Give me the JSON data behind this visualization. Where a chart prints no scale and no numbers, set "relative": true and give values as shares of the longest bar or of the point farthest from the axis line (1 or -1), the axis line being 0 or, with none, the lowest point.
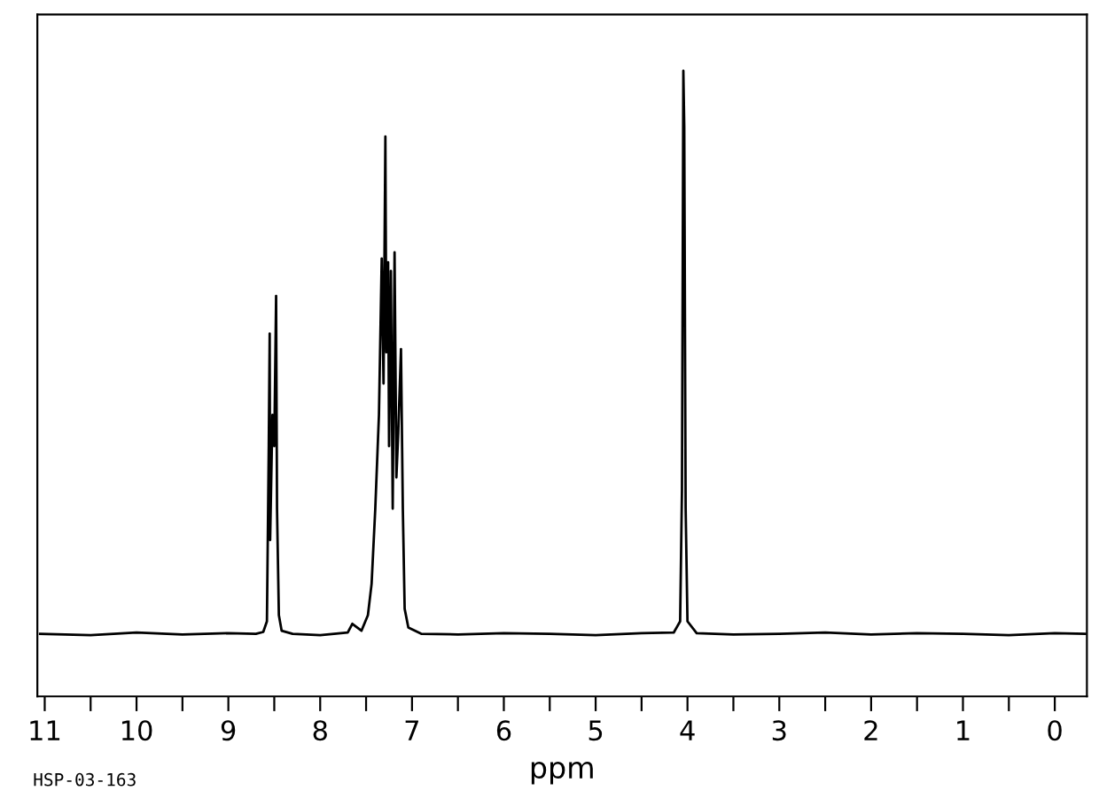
{
  "chart_data": {
    "type": "line",
    "relative": true,
    "xlabel": "ppm",
    "annotations": [
      "HSP-03-163"
    ],
    "xlim": [
      11.08,
      -0.35
    ],
    "xticks": [
      11,
      {
        "value": 10.5,
        "label": null
      },
      10,
      {
        "value": 9.5,
        "label": null
      },
      9,
      {
        "value": 8.5,
        "label": null
      },
      8,
      {
        "value": 7.5,
        "label": null
      },
      7,
      {
        "value": 6.5,
        "label": null
      },
      6,
      {
        "value": 5.5,
        "label": null
      },
      5,
      {
        "value": 4.5,
        "label": null
      },
      4,
      {
        "value": 3.5,
        "label": null
      },
      3,
      {
        "value": 2.5,
        "label": null
      },
      2,
      {
        "value": 1.5,
        "label": null
      },
      1,
      {
        "value": 0.5,
        "label": null
      },
      0
    ],
    "tick_labels": "x",
    "marker": "none",
    "line_style": "solid",
    "series": [
      {
        "color": "#000000",
        "x": [
          11.05,
          10.5,
          10.0,
          9.5,
          9.0,
          8.7,
          8.62,
          8.58,
          8.56,
          8.55,
          8.545,
          8.52,
          8.5,
          8.48,
          8.47,
          8.45,
          8.42,
          8.3,
          8.0,
          7.7,
          7.65,
          7.55,
          7.48,
          7.44,
          7.4,
          7.36,
          7.33,
          7.31,
          7.29,
          7.28,
          7.26,
          7.25,
          7.23,
          7.21,
          7.19,
          7.17,
          7.15,
          7.12,
          7.1,
          7.08,
          7.04,
          6.9,
          6.5,
          6.0,
          5.5,
          5.0,
          4.5,
          4.15,
          4.08,
          4.06,
          4.045,
          4.035,
          4.02,
          4.0,
          3.9,
          3.5,
          3.0,
          2.5,
          2.0,
          1.5,
          1.0,
          0.5,
          0.0,
          -0.33
        ],
        "values": [
          0.1,
          0.098,
          0.102,
          0.099,
          0.101,
          0.1,
          0.103,
          0.12,
          0.4,
          0.58,
          0.25,
          0.45,
          0.4,
          0.64,
          0.3,
          0.13,
          0.105,
          0.1,
          0.098,
          0.102,
          0.116,
          0.105,
          0.13,
          0.18,
          0.3,
          0.45,
          0.7,
          0.5,
          0.895,
          0.55,
          0.694,
          0.4,
          0.68,
          0.3,
          0.71,
          0.35,
          0.42,
          0.555,
          0.3,
          0.14,
          0.11,
          0.1,
          0.099,
          0.101,
          0.1,
          0.098,
          0.101,
          0.102,
          0.12,
          0.33,
          1.0,
          0.91,
          0.3,
          0.12,
          0.101,
          0.099,
          0.1,
          0.102,
          0.099,
          0.101,
          0.1,
          0.098,
          0.101,
          0.1
        ]
      }
    ]
  }
}
